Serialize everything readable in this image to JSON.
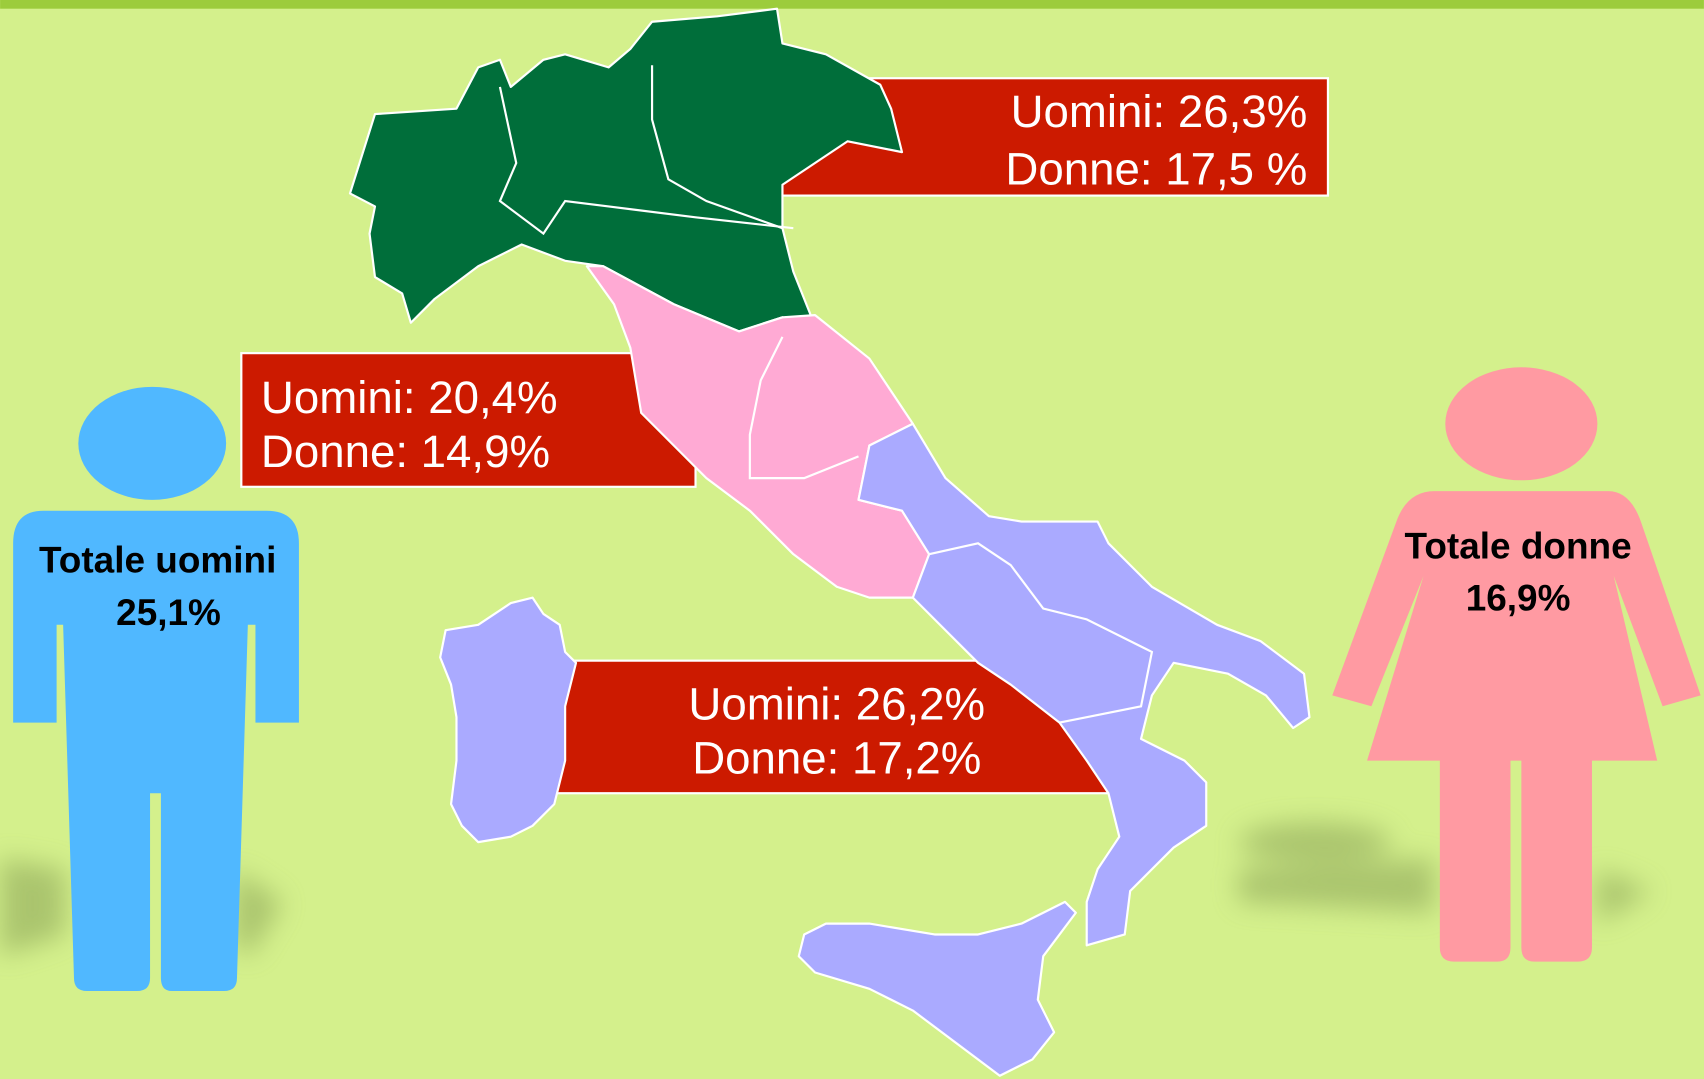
{
  "regions": [
    {
      "men": "Uomini: 26,3%",
      "women": "Donne: 17,5 %"
    },
    {
      "men": "Uomini: 20,4%",
      "women": "Donne: 14,9%"
    },
    {
      "men": "Uomini: 26,2%",
      "women": "Donne: 17,2%"
    }
  ],
  "totals": {
    "men": {
      "label": "Totale uomini",
      "value": "25,1%"
    },
    "women": {
      "label": "Totale donne",
      "value": "16,9%"
    }
  }
}
